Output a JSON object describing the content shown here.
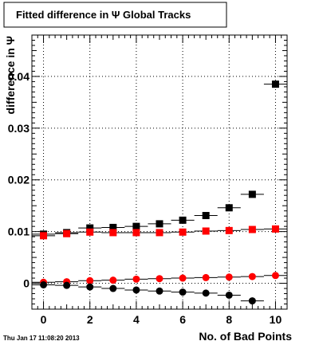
{
  "chart_data": {
    "type": "scatter",
    "title": "Fitted difference in Ψ   Global Tracks",
    "xlabel": "No. of Bad Points",
    "ylabel": "difference in Ψ",
    "footer": "Thu Jan 17 11:08:20 2013",
    "xlim": [
      -0.5,
      10.5
    ],
    "ylim": [
      -0.005,
      0.048
    ],
    "xticks_major": [
      0,
      2,
      4,
      6,
      8,
      10
    ],
    "yticks_major": [
      0,
      0.01,
      0.02,
      0.03,
      0.04
    ],
    "xtick_labels": [
      "0",
      "2",
      "4",
      "6",
      "8",
      "10"
    ],
    "ytick_labels": [
      "0",
      "0.01",
      "0.02",
      "0.03",
      "0.04"
    ],
    "grid": true,
    "series": [
      {
        "color": "#000000",
        "marker": "square",
        "x": [
          0,
          1,
          2,
          3,
          4,
          5,
          6,
          7,
          8,
          9,
          10
        ],
        "y": [
          0.0095,
          0.0098,
          0.0107,
          0.0108,
          0.011,
          0.0115,
          0.0122,
          0.0131,
          0.0146,
          0.0172,
          0.0385
        ],
        "xerr": 0.5
      },
      {
        "color": "#ff0000",
        "marker": "square",
        "x": [
          0,
          1,
          2,
          3,
          4,
          5,
          6,
          7,
          8,
          9,
          10
        ],
        "y": [
          0.0092,
          0.0096,
          0.0099,
          0.0098,
          0.0098,
          0.0098,
          0.0099,
          0.0101,
          0.0102,
          0.0104,
          0.0105
        ],
        "xerr": 0.5
      },
      {
        "color": "#ff0000",
        "marker": "circle",
        "x": [
          0,
          1,
          2,
          3,
          4,
          5,
          6,
          7,
          8,
          9,
          10
        ],
        "y": [
          0.0002,
          0.0003,
          0.0005,
          0.0006,
          0.0008,
          0.0009,
          0.001,
          0.0011,
          0.0012,
          0.0013,
          0.0015
        ],
        "xerr": 0.5
      },
      {
        "color": "#000000",
        "marker": "circle",
        "x": [
          0,
          1,
          2,
          3,
          4,
          5,
          6,
          7,
          8,
          9
        ],
        "y": [
          -0.0003,
          -0.0004,
          -0.0007,
          -0.001,
          -0.0013,
          -0.0015,
          -0.0017,
          -0.0019,
          -0.0023,
          -0.0034
        ],
        "xerr": 0.5
      }
    ]
  }
}
